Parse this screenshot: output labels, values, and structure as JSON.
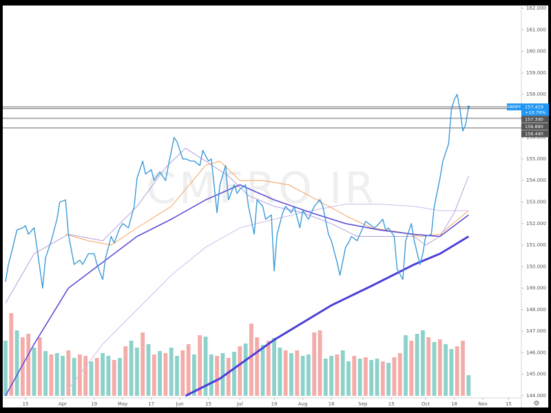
{
  "chart_data": {
    "type": "line",
    "symbol": "GBPJPY",
    "watermark": "CMFRO.IR",
    "change": "+10.79%",
    "last_price": 157.419,
    "last_color": "#2196f3",
    "levels": [
      {
        "value": 157.34,
        "label": "157.340"
      },
      {
        "value": 156.89,
        "label": "156.890"
      },
      {
        "value": 156.44,
        "label": "156.440"
      }
    ],
    "xlim": [
      0,
      180
    ],
    "xticks": [
      {
        "value": 7,
        "label": "15"
      },
      {
        "value": 20,
        "label": "Apr"
      },
      {
        "value": 31,
        "label": "19"
      },
      {
        "value": 41,
        "label": "May"
      },
      {
        "value": 51,
        "label": "17"
      },
      {
        "value": 61,
        "label": "Jun"
      },
      {
        "value": 71,
        "label": "15"
      },
      {
        "value": 82,
        "label": "Jul"
      },
      {
        "value": 94,
        "label": "19"
      },
      {
        "value": 104,
        "label": "Aug"
      },
      {
        "value": 114,
        "label": "16"
      },
      {
        "value": 125,
        "label": "Sep"
      },
      {
        "value": 135,
        "label": "15"
      },
      {
        "value": 147,
        "label": "Oct"
      },
      {
        "value": 157,
        "label": "18"
      },
      {
        "value": 167,
        "label": "Nov"
      },
      {
        "value": 176,
        "label": "15"
      }
    ],
    "ylim": [
      144,
      162
    ],
    "yticks": [
      {
        "value": 144,
        "label": "144.000"
      },
      {
        "value": 145,
        "label": "145.000"
      },
      {
        "value": 146,
        "label": "146.000"
      },
      {
        "value": 147,
        "label": "147.000"
      },
      {
        "value": 148,
        "label": "148.000"
      },
      {
        "value": 149,
        "label": "149.000"
      },
      {
        "value": 150,
        "label": "150.000"
      },
      {
        "value": 151,
        "label": "151.000"
      },
      {
        "value": 152,
        "label": "152.000"
      },
      {
        "value": 153,
        "label": "153.000"
      },
      {
        "value": 154,
        "label": "154.000"
      },
      {
        "value": 155,
        "label": "155.000"
      },
      {
        "value": 156,
        "label": "156.000"
      },
      {
        "value": 157,
        "label": "157.000"
      },
      {
        "value": 158,
        "label": "158.000"
      },
      {
        "value": 159,
        "label": "159.000"
      },
      {
        "value": 160,
        "label": "160.000"
      },
      {
        "value": 161,
        "label": "161.000"
      },
      {
        "value": 162,
        "label": "162.000"
      }
    ],
    "series": [
      {
        "color": "#c9bdeb",
        "width": 1,
        "x": [
          22,
          34,
          46,
          58,
          70,
          82,
          94,
          107,
          119,
          131,
          143,
          152,
          162
        ],
        "values": [
          144.3,
          146.4,
          148.0,
          149.6,
          150.9,
          151.8,
          152.2,
          152.6,
          152.9,
          152.9,
          152.8,
          152.6,
          152.6
        ]
      },
      {
        "color": "#b39ddb",
        "width": 1,
        "x": [
          0,
          10,
          22,
          34,
          46,
          56,
          63,
          70,
          78,
          85,
          94,
          104,
          114,
          123,
          133,
          143,
          147,
          152,
          157,
          162
        ],
        "values": [
          148.3,
          150.6,
          151.5,
          151.2,
          152.8,
          154.6,
          155.5,
          154.9,
          154.2,
          153.3,
          152.8,
          152.5,
          152.0,
          151.4,
          151.4,
          151.4,
          151.0,
          151.4,
          152.5,
          154.2
        ]
      },
      {
        "color": "#f5a25d",
        "width": 1,
        "x": [
          21,
          29,
          37,
          46,
          58,
          70,
          75,
          82,
          90,
          99,
          109,
          120,
          128,
          138,
          145,
          152,
          162
        ],
        "values": [
          151.5,
          151.2,
          151.0,
          151.8,
          152.8,
          154.7,
          154.9,
          154.0,
          154.0,
          153.8,
          153.1,
          152.3,
          151.8,
          151.6,
          151.4,
          151.5,
          152.6
        ]
      },
      {
        "color": "#5e4ed6",
        "width": 1.6,
        "x": [
          0,
          10,
          22,
          34,
          46,
          58,
          70,
          82,
          94,
          107,
          119,
          131,
          143,
          152,
          162
        ],
        "values": [
          144.0,
          146.4,
          149.0,
          150.2,
          151.4,
          152.2,
          153.1,
          153.8,
          153.1,
          152.5,
          152.0,
          151.7,
          151.5,
          151.4,
          152.4
        ]
      },
      {
        "color": "#4a3fd8",
        "width": 3,
        "x": [
          63,
          75,
          94,
          114,
          128,
          143,
          152,
          162
        ],
        "values": [
          144.0,
          144.8,
          146.6,
          148.2,
          149.1,
          150.1,
          150.6,
          151.4
        ]
      },
      {
        "color": "#3a9ad9",
        "width": 1.4,
        "x": [
          0,
          1,
          2,
          4,
          6,
          7,
          8,
          10,
          11,
          13,
          14,
          16,
          18,
          19,
          21,
          22,
          24,
          26,
          27,
          29,
          31,
          32,
          34,
          35,
          37,
          38,
          40,
          41,
          43,
          45,
          46,
          48,
          49,
          51,
          52,
          54,
          56,
          57,
          59,
          60,
          62,
          63,
          65,
          66,
          68,
          69,
          71,
          72,
          74,
          75,
          77,
          78,
          80,
          81,
          82,
          84,
          85,
          87,
          88,
          90,
          91,
          93,
          94,
          95,
          97,
          98,
          100,
          101,
          103,
          104,
          106,
          107,
          108,
          110,
          111,
          113,
          114,
          116,
          117,
          119,
          120,
          121,
          123,
          124,
          126,
          127,
          129,
          130,
          132,
          133,
          134,
          136,
          137,
          139,
          140,
          142,
          143,
          145,
          146,
          147,
          149,
          150,
          152,
          153,
          155,
          156,
          157,
          158,
          159,
          160,
          161,
          162
        ],
        "values": [
          149.3,
          150.1,
          150.6,
          151.7,
          151.8,
          151.9,
          151.5,
          151.8,
          150.9,
          149.0,
          150.4,
          151.2,
          152.2,
          153.0,
          153.1,
          151.5,
          150.1,
          150.3,
          150.1,
          150.6,
          150.6,
          150.1,
          149.4,
          150.4,
          151.4,
          151.1,
          151.8,
          152.0,
          151.8,
          152.8,
          154.1,
          154.9,
          154.3,
          154.5,
          154.0,
          154.4,
          154.0,
          154.7,
          156.0,
          155.8,
          155.0,
          155.0,
          154.9,
          154.9,
          154.7,
          155.4,
          154.9,
          155.0,
          152.5,
          153.8,
          154.7,
          153.1,
          153.8,
          153.4,
          153.6,
          153.8,
          152.8,
          151.5,
          153.1,
          152.8,
          152.2,
          152.4,
          149.8,
          151.5,
          152.5,
          152.8,
          152.5,
          152.8,
          151.8,
          152.6,
          152.2,
          152.5,
          152.8,
          153.1,
          152.8,
          151.5,
          151.2,
          150.2,
          149.6,
          150.9,
          151.1,
          151.4,
          151.2,
          151.5,
          152.1,
          152.0,
          151.8,
          151.9,
          152.2,
          151.7,
          151.8,
          151.4,
          149.9,
          149.4,
          151.2,
          152.0,
          151.2,
          150.1,
          150.6,
          151.4,
          151.5,
          152.8,
          154.1,
          154.9,
          155.7,
          157.3,
          157.75,
          158.0,
          157.3,
          156.3,
          156.6,
          157.419
        ]
      }
    ],
    "volume": {
      "x": [
        0,
        2,
        4,
        6,
        8,
        10,
        12,
        14,
        16,
        18,
        20,
        22,
        24,
        26,
        28,
        30,
        32,
        34,
        36,
        38,
        40,
        42,
        44,
        46,
        48,
        50,
        52,
        54,
        56,
        58,
        60,
        62,
        64,
        66,
        68,
        70,
        72,
        74,
        76,
        78,
        80,
        82,
        84,
        86,
        88,
        90,
        92,
        94,
        96,
        98,
        100,
        102,
        104,
        106,
        108,
        110,
        112,
        114,
        116,
        118,
        120,
        122,
        124,
        126,
        128,
        130,
        132,
        134,
        136,
        138,
        140,
        142,
        144,
        146,
        148,
        150,
        152,
        154,
        156,
        158,
        160,
        162
      ],
      "values": [
        80,
        120,
        95,
        85,
        90,
        70,
        85,
        65,
        60,
        62,
        58,
        66,
        55,
        60,
        58,
        50,
        55,
        62,
        58,
        52,
        55,
        72,
        80,
        70,
        92,
        75,
        60,
        65,
        62,
        70,
        58,
        66,
        75,
        60,
        88,
        86,
        60,
        58,
        62,
        55,
        64,
        72,
        76,
        105,
        85,
        74,
        80,
        84,
        70,
        66,
        62,
        66,
        58,
        60,
        92,
        95,
        54,
        58,
        60,
        66,
        50,
        58,
        54,
        56,
        52,
        54,
        50,
        48,
        56,
        62,
        88,
        80,
        90,
        95,
        85,
        78,
        82,
        75,
        68,
        72,
        80,
        30
      ],
      "colors": [
        "#7fcdc4",
        "#f3a3a0",
        "#7fcdc4",
        "#f3a3a0",
        "#f3a3a0",
        "#7fcdc4",
        "#f3a3a0",
        "#7fcdc4",
        "#f3a3a0",
        "#7fcdc4",
        "#7fcdc4",
        "#f3a3a0",
        "#7fcdc4",
        "#f3a3a0",
        "#f3a3a0",
        "#7fcdc4",
        "#f3a3a0",
        "#7fcdc4",
        "#7fcdc4",
        "#f3a3a0",
        "#7fcdc4",
        "#f3a3a0",
        "#7fcdc4",
        "#7fcdc4",
        "#f3a3a0",
        "#7fcdc4",
        "#f3a3a0",
        "#7fcdc4",
        "#f3a3a0",
        "#7fcdc4",
        "#7fcdc4",
        "#f3a3a0",
        "#f3a3a0",
        "#7fcdc4",
        "#f3a3a0",
        "#7fcdc4",
        "#7fcdc4",
        "#f3a3a0",
        "#7fcdc4",
        "#f3a3a0",
        "#7fcdc4",
        "#f3a3a0",
        "#7fcdc4",
        "#f3a3a0",
        "#f3a3a0",
        "#7fcdc4",
        "#f3a3a0",
        "#7fcdc4",
        "#7fcdc4",
        "#f3a3a0",
        "#7fcdc4",
        "#f3a3a0",
        "#7fcdc4",
        "#7fcdc4",
        "#f3a3a0",
        "#f3a3a0",
        "#7fcdc4",
        "#7fcdc4",
        "#f3a3a0",
        "#7fcdc4",
        "#7fcdc4",
        "#f3a3a0",
        "#7fcdc4",
        "#f3a3a0",
        "#7fcdc4",
        "#7fcdc4",
        "#f3a3a0",
        "#7fcdc4",
        "#f3a3a0",
        "#f3a3a0",
        "#7fcdc4",
        "#f3a3a0",
        "#7fcdc4",
        "#7fcdc4",
        "#f3a3a0",
        "#7fcdc4",
        "#f3a3a0",
        "#7fcdc4",
        "#7fcdc4",
        "#f3a3a0",
        "#f3a3a0",
        "#7fcdc4"
      ]
    }
  }
}
